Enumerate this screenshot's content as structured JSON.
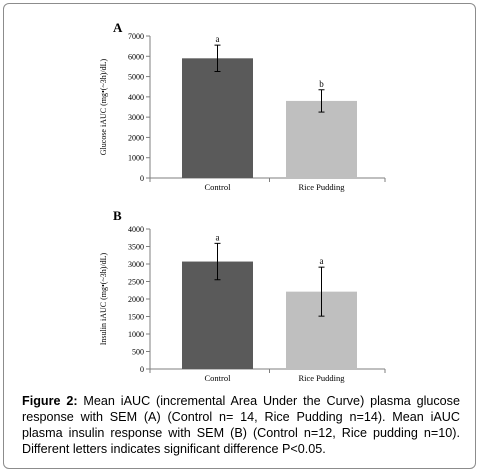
{
  "panels": [
    {
      "label": "A",
      "ylabel": "Glucose iAUC (mg•(~3h)/dL)"
    },
    {
      "label": "B",
      "ylabel": "Insulin iAUC (mg•(~3h)/dL)"
    }
  ],
  "caption": {
    "lead": "Figure 2:",
    "text": " Mean iAUC (incremental Area Under the Curve) plasma glucose response with SEM (A) (Control n= 14, Rice Pudding n=14). Mean iAUC plasma insulin response with SEM (B) (Control n=12, Rice pudding n=10). Different letters indicates significant difference P<0.05."
  },
  "chart_data": [
    {
      "type": "bar",
      "title": "",
      "categories": [
        "Control",
        "Rice Pudding"
      ],
      "values": [
        5900,
        3800
      ],
      "errors": [
        650,
        550
      ],
      "significance": [
        "a",
        "b"
      ],
      "colors": [
        "#5a5a5a",
        "#bfbfbf"
      ],
      "xlabel": "",
      "ylabel": "Glucose iAUC (mg•(~3h)/dL)",
      "ylim": [
        0,
        7000
      ],
      "yticks": [
        0,
        1000,
        2000,
        3000,
        4000,
        5000,
        6000,
        7000
      ],
      "grid": false
    },
    {
      "type": "bar",
      "title": "",
      "categories": [
        "Control",
        "Rice Pudding"
      ],
      "values": [
        3070,
        2210
      ],
      "errors": [
        520,
        700
      ],
      "significance": [
        "a",
        "a"
      ],
      "colors": [
        "#5a5a5a",
        "#bfbfbf"
      ],
      "xlabel": "",
      "ylabel": "Insulin iAUC (mg•(~3h)/dL)",
      "ylim": [
        0,
        4000
      ],
      "yticks": [
        0,
        500,
        1000,
        1500,
        2000,
        2500,
        3000,
        3500,
        4000
      ],
      "grid": false
    }
  ]
}
